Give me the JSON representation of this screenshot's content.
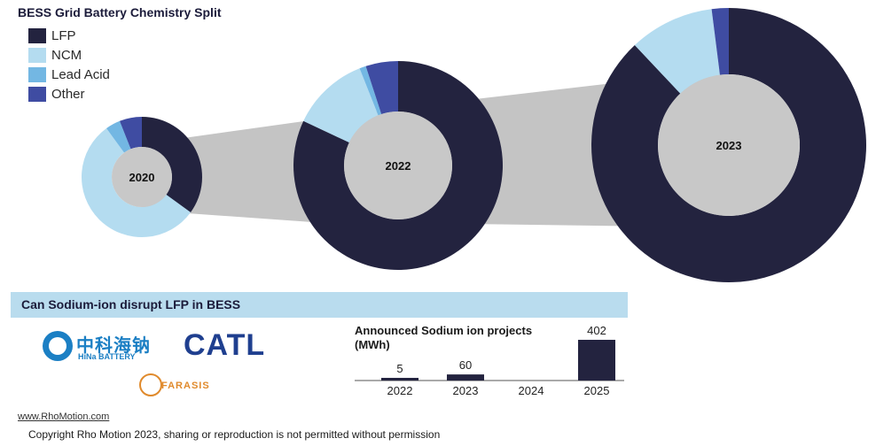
{
  "header": {
    "title": "BESS Grid Battery Chemistry Split"
  },
  "legend": [
    {
      "label": "LFP",
      "color": "#23233f"
    },
    {
      "label": "NCM",
      "color": "#b4dcf0"
    },
    {
      "label": "Lead Acid",
      "color": "#73b7e3"
    },
    {
      "label": "Other",
      "color": "#3f4ca2"
    }
  ],
  "chart_data": [
    {
      "type": "pie",
      "title": "BESS Grid Battery Chemistry Split",
      "categories": [
        "LFP",
        "NCM",
        "Lead Acid",
        "Other"
      ],
      "series": [
        {
          "name": "2020",
          "values": [
            35,
            55,
            4,
            6
          ]
        },
        {
          "name": "2022",
          "values": [
            82,
            12,
            1,
            5
          ]
        },
        {
          "name": "2023",
          "values": [
            88,
            10,
            0,
            2
          ]
        }
      ]
    },
    {
      "type": "bar",
      "title": "Announced Sodium ion projects (MWh)",
      "categories": [
        "2022",
        "2023",
        "2024",
        "2025"
      ],
      "values": [
        5,
        60,
        0,
        402
      ],
      "value_labels": [
        "5",
        "60",
        "",
        "402"
      ]
    }
  ],
  "banner": {
    "text": "Can Sodium-ion disrupt LFP in BESS"
  },
  "sodium_chart": {
    "title_line1": "Announced Sodium ion projects",
    "title_line2": "(MWh)"
  },
  "logos": {
    "hina_cn": "中科海钠",
    "hina_en": "HiNa BATTERY",
    "catl": "CATL",
    "farasis": "FARASIS"
  },
  "footer": {
    "link": "www.RhoMotion.com",
    "copyright": "Copyright Rho Motion 2023, sharing or reproduction is not permitted without permission"
  },
  "colors": {
    "connector": "#c4c4c4",
    "hole": "#c8c8c8",
    "bar": "#23233f",
    "banner": "#b9dcee"
  }
}
